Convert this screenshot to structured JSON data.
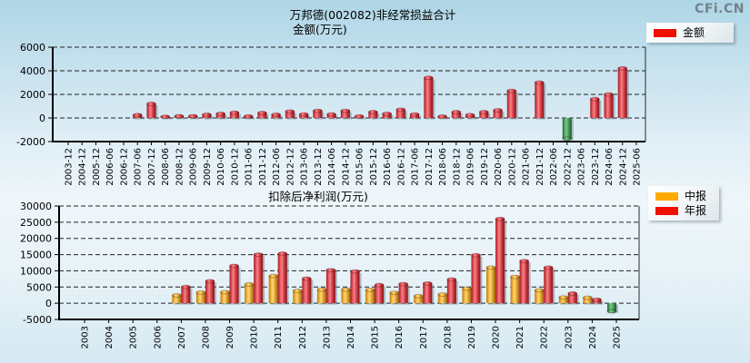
{
  "logo": "CFi.CN",
  "palette": {
    "legend_red": "#ee1100",
    "legend_orange": "#ffaa00",
    "negative_green": "#2f9e44"
  },
  "chart_data": [
    {
      "type": "bar",
      "title": "万邦德(002082)非经常损益合计",
      "subtitle": "金额(万元)",
      "ylabel": "金额(万元)",
      "ylim": [
        -2000,
        6000
      ],
      "yticks": [
        -2000,
        0,
        2000,
        4000,
        6000
      ],
      "grid": "dashed",
      "legend_position": "top-right",
      "categories": [
        "2003-12",
        "2004-12",
        "2005-12",
        "2006-06",
        "2006-12",
        "2007-06",
        "2007-12",
        "2008-06",
        "2008-12",
        "2009-06",
        "2009-12",
        "2010-06",
        "2010-12",
        "2011-06",
        "2011-12",
        "2012-06",
        "2012-12",
        "2013-06",
        "2013-12",
        "2014-06",
        "2014-12",
        "2015-06",
        "2015-12",
        "2016-06",
        "2016-12",
        "2017-06",
        "2017-12",
        "2018-06",
        "2018-12",
        "2019-06",
        "2019-12",
        "2020-06",
        "2020-12",
        "2021-06",
        "2021-12",
        "2022-06",
        "2022-12",
        "2023-06",
        "2023-12",
        "2024-06",
        "2024-12",
        "2025-06"
      ],
      "series": [
        {
          "name": "金额",
          "color_key": "red",
          "values": [
            null,
            null,
            null,
            null,
            null,
            250,
            1200,
            100,
            150,
            150,
            280,
            350,
            450,
            130,
            420,
            280,
            550,
            300,
            600,
            300,
            600,
            130,
            500,
            350,
            700,
            300,
            3400,
            120,
            500,
            250,
            500,
            650,
            2300,
            null,
            3000,
            null,
            -1750,
            null,
            1600,
            2000,
            4200,
            null
          ]
        }
      ],
      "note": "negative values drawn green"
    },
    {
      "type": "bar",
      "title": "扣除后净利润(万元)",
      "ylim": [
        -5000,
        30000
      ],
      "yticks": [
        -5000,
        0,
        5000,
        10000,
        15000,
        20000,
        25000,
        30000
      ],
      "grid": "dashed",
      "legend_position": "top-right",
      "categories": [
        "2003",
        "2004",
        "2005",
        "2006",
        "2007",
        "2008",
        "2009",
        "2010",
        "2011",
        "2012",
        "2013",
        "2014",
        "2015",
        "2016",
        "2017",
        "2018",
        "2019",
        "2020",
        "2021",
        "2022",
        "2023",
        "2024",
        "2025"
      ],
      "series": [
        {
          "name": "中报",
          "color_key": "orange",
          "values": [
            null,
            null,
            null,
            null,
            2400,
            3300,
            3400,
            5800,
            8400,
            3800,
            4200,
            4200,
            4100,
            3200,
            2200,
            2700,
            4500,
            11000,
            8100,
            4000,
            1800,
            1700,
            -2500
          ]
        },
        {
          "name": "年报",
          "color_key": "red",
          "values": [
            null,
            null,
            null,
            null,
            5000,
            6800,
            11500,
            15000,
            15300,
            7600,
            10200,
            9800,
            5600,
            5900,
            6100,
            7300,
            14800,
            26000,
            13000,
            11000,
            3000,
            1100,
            null
          ]
        }
      ],
      "note": "negative values drawn green"
    }
  ]
}
